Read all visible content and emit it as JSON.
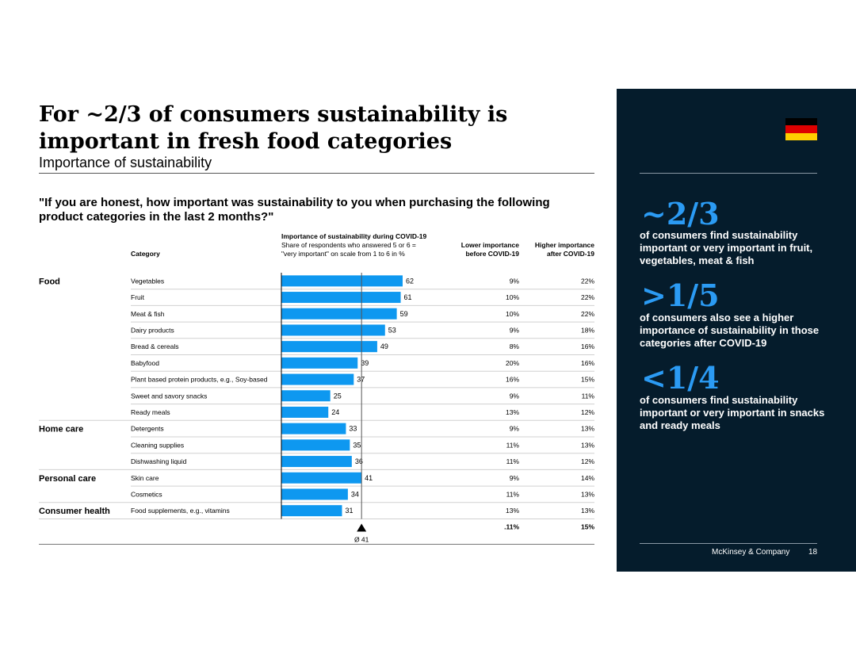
{
  "title": "For ~2/3 of consumers sustainability is important in fresh food categories",
  "subtitle": "Importance of sustainability",
  "question": "\"If you are honest, how important was sustainability to you when purchasing the following product categories in the last 2 months?\"",
  "headers": {
    "category": "Category",
    "importance_title": "Importance of sustainability during COVID-19",
    "importance_sub1": "Share of respondents who answered 5 or 6 =",
    "importance_sub2": "\"very important\" on scale from 1 to 6 in %",
    "lower_1": "Lower importance",
    "lower_2": "before COVID-19",
    "higher_1": "Higher importance",
    "higher_2": "after COVID-19"
  },
  "colors": {
    "bar": "#0e98f0",
    "panel_bg": "#051c2c",
    "accent": "#2b9bf4"
  },
  "chart_data": {
    "type": "bar",
    "title": "Importance of sustainability during COVID-19",
    "xlabel": "Share of respondents who answered 5 or 6 = \"very important\" on scale from 1 to 6 in %",
    "xlim": [
      0,
      62
    ],
    "average": 41,
    "average_label": "Ø 41",
    "groups": [
      "Food",
      "Home care",
      "Personal care",
      "Consumer health"
    ],
    "rows": [
      {
        "group": "Food",
        "category": "Vegetables",
        "value": 62,
        "lower": "9%",
        "higher": "22%"
      },
      {
        "group": "",
        "category": "Fruit",
        "value": 61,
        "lower": "10%",
        "higher": "22%"
      },
      {
        "group": "",
        "category": "Meat & fish",
        "value": 59,
        "lower": "10%",
        "higher": "22%"
      },
      {
        "group": "",
        "category": "Dairy products",
        "value": 53,
        "lower": "9%",
        "higher": "18%"
      },
      {
        "group": "",
        "category": "Bread & cereals",
        "value": 49,
        "lower": "8%",
        "higher": "16%"
      },
      {
        "group": "",
        "category": "Babyfood",
        "value": 39,
        "lower": "20%",
        "higher": "16%"
      },
      {
        "group": "",
        "category": "Plant based protein products, e.g., Soy-based",
        "value": 37,
        "lower": "16%",
        "higher": "15%"
      },
      {
        "group": "",
        "category": "Sweet and savory snacks",
        "value": 25,
        "lower": "9%",
        "higher": "11%"
      },
      {
        "group": "",
        "category": "Ready meals",
        "value": 24,
        "lower": "13%",
        "higher": "12%"
      },
      {
        "group": "Home care",
        "category": "Detergents",
        "value": 33,
        "lower": "9%",
        "higher": "13%"
      },
      {
        "group": "",
        "category": "Cleaning supplies",
        "value": 35,
        "lower": "11%",
        "higher": "13%"
      },
      {
        "group": "",
        "category": "Dishwashing liquid",
        "value": 36,
        "lower": "11%",
        "higher": "12%"
      },
      {
        "group": "Personal care",
        "category": "Skin care",
        "value": 41,
        "lower": "9%",
        "higher": "14%"
      },
      {
        "group": "",
        "category": "Cosmetics",
        "value": 34,
        "lower": "11%",
        "higher": "13%"
      },
      {
        "group": "Consumer health",
        "category": "Food supplements, e.g., vitamins",
        "value": 31,
        "lower": "13%",
        "higher": "13%"
      }
    ],
    "totals": {
      "lower": ".11%",
      "higher": "15%"
    }
  },
  "panel": {
    "stat1_big": "~2/3",
    "stat1_text": "of consumers find sustainability important or very important in fruit, vegetables, meat & fish",
    "stat2_big": ">1/5",
    "stat2_text": "of consumers also see a higher importance of sustainability in those categories after COVID-19",
    "stat3_big": "<1/4",
    "stat3_text": "of consumers find sustainability important or very important in snacks and ready meals",
    "flag_colors": [
      "#000000",
      "#dd0000",
      "#ffce00"
    ],
    "footer": "McKinsey & Company",
    "page_number": "18"
  }
}
